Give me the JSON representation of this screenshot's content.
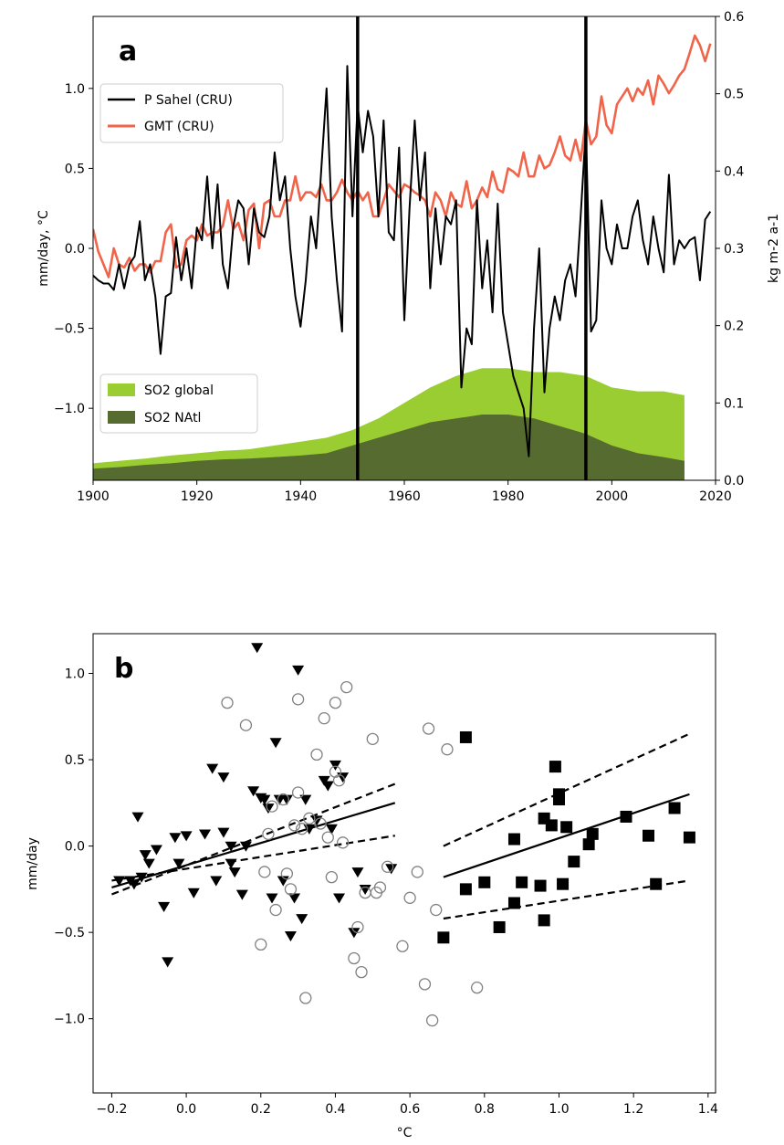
{
  "chart_data": [
    {
      "type": "line",
      "panel_label": "a",
      "xlim": [
        1900,
        2020
      ],
      "xticks": [
        1900,
        1920,
        1940,
        1960,
        1980,
        2000,
        2020
      ],
      "ylabel": "mm/day, °C",
      "ylim": [
        -1.45,
        1.45
      ],
      "yticks": [
        -1.0,
        -0.5,
        0.0,
        0.5,
        1.0
      ],
      "ylabel_right": "kg m-2 a-1",
      "ylim_right": [
        0.0,
        0.6
      ],
      "yticks_right": [
        0.0,
        0.1,
        0.2,
        0.3,
        0.4,
        0.5,
        0.6
      ],
      "vlines": [
        1951,
        1995
      ],
      "legend_upper": [
        "P Sahel (CRU)",
        "GMT (CRU)"
      ],
      "legend_lower": [
        "SO2 global",
        "SO2 NAtl"
      ],
      "colors": {
        "p_sahel": "#000000",
        "gmt": "#f0644a",
        "so2_global": "#9acd32",
        "so2_natl": "#556b2f"
      },
      "series": [
        {
          "name": "P Sahel (CRU)",
          "axis": "left",
          "x": [
            1900,
            1901,
            1902,
            1903,
            1904,
            1905,
            1906,
            1907,
            1908,
            1909,
            1910,
            1911,
            1912,
            1913,
            1914,
            1915,
            1916,
            1917,
            1918,
            1919,
            1920,
            1921,
            1922,
            1923,
            1924,
            1925,
            1926,
            1927,
            1928,
            1929,
            1930,
            1931,
            1932,
            1933,
            1934,
            1935,
            1936,
            1937,
            1938,
            1939,
            1940,
            1941,
            1942,
            1943,
            1944,
            1945,
            1946,
            1947,
            1948,
            1949,
            1950,
            1951,
            1952,
            1953,
            1954,
            1955,
            1956,
            1957,
            1958,
            1959,
            1960,
            1961,
            1962,
            1963,
            1964,
            1965,
            1966,
            1967,
            1968,
            1969,
            1970,
            1971,
            1972,
            1973,
            1974,
            1975,
            1976,
            1977,
            1978,
            1979,
            1980,
            1981,
            1982,
            1983,
            1984,
            1985,
            1986,
            1987,
            1988,
            1989,
            1990,
            1991,
            1992,
            1993,
            1994,
            1995,
            1996,
            1997,
            1998,
            1999,
            2000,
            2001,
            2002,
            2003,
            2004,
            2005,
            2006,
            2007,
            2008,
            2009,
            2010,
            2011,
            2012,
            2013,
            2014,
            2015,
            2016,
            2017,
            2018,
            2019
          ],
          "values": [
            -0.17,
            -0.2,
            -0.22,
            -0.22,
            -0.26,
            -0.1,
            -0.25,
            -0.1,
            -0.05,
            0.17,
            -0.2,
            -0.1,
            -0.3,
            -0.66,
            -0.3,
            -0.28,
            0.07,
            -0.2,
            0.0,
            -0.25,
            0.13,
            0.05,
            0.45,
            0.0,
            0.4,
            -0.1,
            -0.25,
            0.13,
            0.3,
            0.25,
            -0.1,
            0.25,
            0.1,
            0.07,
            0.2,
            0.6,
            0.3,
            0.45,
            0.0,
            -0.3,
            -0.49,
            -0.2,
            0.2,
            0.0,
            0.5,
            1.0,
            0.2,
            -0.2,
            -0.52,
            1.14,
            0.2,
            0.9,
            0.6,
            0.86,
            0.7,
            0.2,
            0.8,
            0.1,
            0.05,
            0.63,
            -0.45,
            0.25,
            0.8,
            0.3,
            0.6,
            -0.25,
            0.25,
            -0.1,
            0.2,
            0.15,
            0.3,
            -0.87,
            -0.5,
            -0.6,
            0.3,
            -0.25,
            0.05,
            -0.4,
            0.28,
            -0.4,
            -0.6,
            -0.8,
            -0.9,
            -1.0,
            -1.3,
            -0.5,
            0.0,
            -0.9,
            -0.5,
            -0.3,
            -0.45,
            -0.2,
            -0.1,
            -0.3,
            0.2,
            0.75,
            -0.52,
            -0.45,
            0.3,
            0.0,
            -0.1,
            0.15,
            0.0,
            0.0,
            0.2,
            0.3,
            0.05,
            -0.1,
            0.2,
            0.0,
            -0.15,
            0.46,
            -0.1,
            0.05,
            0.0,
            0.05,
            0.07,
            -0.2,
            0.18,
            0.23
          ]
        },
        {
          "name": "GMT (CRU)",
          "axis": "left",
          "x": [
            1900,
            1901,
            1902,
            1903,
            1904,
            1905,
            1906,
            1907,
            1908,
            1909,
            1910,
            1911,
            1912,
            1913,
            1914,
            1915,
            1916,
            1917,
            1918,
            1919,
            1920,
            1921,
            1922,
            1923,
            1924,
            1925,
            1926,
            1927,
            1928,
            1929,
            1930,
            1931,
            1932,
            1933,
            1934,
            1935,
            1936,
            1937,
            1938,
            1939,
            1940,
            1941,
            1942,
            1943,
            1944,
            1945,
            1946,
            1947,
            1948,
            1949,
            1950,
            1951,
            1952,
            1953,
            1954,
            1955,
            1956,
            1957,
            1958,
            1959,
            1960,
            1961,
            1962,
            1963,
            1964,
            1965,
            1966,
            1967,
            1968,
            1969,
            1970,
            1971,
            1972,
            1973,
            1974,
            1975,
            1976,
            1977,
            1978,
            1979,
            1980,
            1981,
            1982,
            1983,
            1984,
            1985,
            1986,
            1987,
            1988,
            1989,
            1990,
            1991,
            1992,
            1993,
            1994,
            1995,
            1996,
            1997,
            1998,
            1999,
            2000,
            2001,
            2002,
            2003,
            2004,
            2005,
            2006,
            2007,
            2008,
            2009,
            2010,
            2011,
            2012,
            2013,
            2014,
            2015,
            2016,
            2017,
            2018,
            2019
          ],
          "values": [
            0.12,
            -0.02,
            -0.1,
            -0.18,
            0.0,
            -0.1,
            -0.12,
            -0.06,
            -0.14,
            -0.1,
            -0.1,
            -0.15,
            -0.08,
            -0.08,
            0.1,
            0.15,
            -0.12,
            -0.1,
            0.05,
            0.08,
            0.05,
            0.15,
            0.08,
            0.1,
            0.1,
            0.14,
            0.3,
            0.12,
            0.16,
            0.05,
            0.24,
            0.28,
            0.0,
            0.28,
            0.3,
            0.2,
            0.2,
            0.3,
            0.3,
            0.45,
            0.3,
            0.35,
            0.35,
            0.32,
            0.4,
            0.3,
            0.3,
            0.35,
            0.43,
            0.35,
            0.3,
            0.36,
            0.3,
            0.35,
            0.2,
            0.2,
            0.3,
            0.4,
            0.36,
            0.32,
            0.4,
            0.38,
            0.35,
            0.33,
            0.3,
            0.2,
            0.35,
            0.3,
            0.2,
            0.35,
            0.28,
            0.26,
            0.42,
            0.25,
            0.3,
            0.38,
            0.32,
            0.48,
            0.37,
            0.35,
            0.5,
            0.48,
            0.45,
            0.6,
            0.45,
            0.45,
            0.58,
            0.5,
            0.52,
            0.6,
            0.7,
            0.58,
            0.55,
            0.68,
            0.55,
            0.8,
            0.65,
            0.7,
            0.95,
            0.77,
            0.72,
            0.9,
            0.95,
            1.0,
            0.92,
            1.0,
            0.96,
            1.05,
            0.9,
            1.08,
            1.03,
            0.97,
            1.02,
            1.08,
            1.12,
            1.22,
            1.33,
            1.27,
            1.17,
            1.28
          ]
        },
        {
          "name": "SO2 global",
          "axis": "right",
          "x": [
            1900,
            1905,
            1910,
            1915,
            1920,
            1925,
            1930,
            1935,
            1940,
            1945,
            1950,
            1955,
            1960,
            1965,
            1970,
            1975,
            1980,
            1985,
            1990,
            1995,
            2000,
            2005,
            2010,
            2014
          ],
          "values": [
            0.022,
            0.025,
            0.028,
            0.032,
            0.035,
            0.038,
            0.04,
            0.045,
            0.05,
            0.055,
            0.065,
            0.08,
            0.1,
            0.12,
            0.135,
            0.145,
            0.145,
            0.14,
            0.14,
            0.135,
            0.12,
            0.115,
            0.115,
            0.11
          ]
        },
        {
          "name": "SO2 NAtl",
          "axis": "right",
          "x": [
            1900,
            1905,
            1910,
            1915,
            1920,
            1925,
            1930,
            1935,
            1940,
            1945,
            1950,
            1955,
            1960,
            1965,
            1970,
            1975,
            1980,
            1985,
            1990,
            1995,
            2000,
            2005,
            2010,
            2014
          ],
          "values": [
            0.015,
            0.017,
            0.02,
            0.022,
            0.025,
            0.027,
            0.028,
            0.03,
            0.032,
            0.035,
            0.045,
            0.055,
            0.065,
            0.075,
            0.08,
            0.085,
            0.085,
            0.08,
            0.07,
            0.06,
            0.045,
            0.035,
            0.03,
            0.025
          ]
        }
      ]
    },
    {
      "type": "scatter",
      "panel_label": "b",
      "xlabel": "°C",
      "ylabel": "mm/day",
      "xlim": [
        -0.25,
        1.42
      ],
      "ylim": [
        -1.43,
        1.23
      ],
      "xticks": [
        -0.2,
        0.0,
        0.2,
        0.4,
        0.6,
        0.8,
        1.0,
        1.2,
        1.4
      ],
      "yticks": [
        -1.0,
        -0.5,
        0.0,
        0.5,
        1.0
      ],
      "series": [
        {
          "marker": "triangle-down",
          "x": [
            -0.18,
            -0.15,
            -0.14,
            -0.13,
            -0.12,
            -0.11,
            -0.1,
            -0.08,
            -0.06,
            -0.05,
            -0.03,
            -0.02,
            0.0,
            0.02,
            0.05,
            0.07,
            0.08,
            0.1,
            0.1,
            0.12,
            0.12,
            0.13,
            0.15,
            0.16,
            0.18,
            0.19,
            0.2,
            0.21,
            0.22,
            0.23,
            0.24,
            0.25,
            0.26,
            0.27,
            0.28,
            0.29,
            0.3,
            0.31,
            0.32,
            0.33,
            0.35,
            0.37,
            0.38,
            0.39,
            0.4,
            0.41,
            0.42,
            0.45,
            0.46,
            0.48,
            0.55
          ],
          "y": [
            -0.2,
            -0.2,
            -0.22,
            0.17,
            -0.18,
            -0.05,
            -0.1,
            -0.02,
            -0.35,
            -0.67,
            0.05,
            -0.1,
            0.06,
            -0.27,
            0.07,
            0.45,
            -0.2,
            0.08,
            0.4,
            -0.1,
            0.0,
            -0.15,
            -0.28,
            0.0,
            0.32,
            1.15,
            0.28,
            0.27,
            0.22,
            -0.3,
            0.6,
            0.27,
            -0.2,
            0.27,
            -0.52,
            -0.3,
            1.02,
            -0.42,
            0.27,
            0.1,
            0.15,
            0.38,
            0.35,
            0.1,
            0.47,
            -0.3,
            0.4,
            -0.5,
            -0.15,
            -0.25,
            -0.13
          ]
        },
        {
          "marker": "circle-open",
          "x": [
            0.11,
            0.16,
            0.2,
            0.21,
            0.22,
            0.23,
            0.24,
            0.26,
            0.27,
            0.28,
            0.29,
            0.3,
            0.3,
            0.31,
            0.32,
            0.33,
            0.35,
            0.36,
            0.37,
            0.38,
            0.39,
            0.4,
            0.4,
            0.41,
            0.42,
            0.43,
            0.45,
            0.46,
            0.47,
            0.48,
            0.5,
            0.51,
            0.52,
            0.54,
            0.58,
            0.6,
            0.62,
            0.64,
            0.65,
            0.66,
            0.67,
            0.7,
            0.78
          ],
          "y": [
            0.83,
            0.7,
            -0.57,
            -0.15,
            0.07,
            0.23,
            -0.37,
            0.27,
            -0.16,
            -0.25,
            0.12,
            0.85,
            0.31,
            0.1,
            -0.88,
            0.16,
            0.53,
            0.13,
            0.74,
            0.05,
            -0.18,
            0.83,
            0.43,
            0.38,
            0.02,
            0.92,
            -0.65,
            -0.47,
            -0.73,
            -0.27,
            0.62,
            -0.27,
            -0.24,
            -0.12,
            -0.58,
            -0.3,
            -0.15,
            -0.8,
            0.68,
            -1.01,
            -0.37,
            0.56,
            -0.82
          ]
        },
        {
          "marker": "square",
          "x": [
            0.69,
            0.75,
            0.75,
            0.8,
            0.84,
            0.88,
            0.88,
            0.9,
            0.95,
            0.96,
            0.96,
            0.98,
            0.99,
            1.0,
            1.0,
            1.01,
            1.02,
            1.04,
            1.08,
            1.09,
            1.18,
            1.24,
            1.26,
            1.31,
            1.35
          ],
          "y": [
            -0.53,
            0.63,
            -0.25,
            -0.21,
            -0.47,
            0.04,
            -0.33,
            -0.21,
            -0.23,
            0.16,
            -0.43,
            0.12,
            0.46,
            0.27,
            0.3,
            -0.22,
            0.11,
            -0.09,
            0.01,
            0.07,
            0.17,
            0.06,
            -0.22,
            0.22,
            0.05
          ]
        }
      ],
      "fit_lines": [
        {
          "style": "solid",
          "x": [
            -0.2,
            0.56
          ],
          "y": [
            -0.24,
            0.25
          ]
        },
        {
          "style": "dashed",
          "x": [
            -0.2,
            0.56
          ],
          "y": [
            -0.28,
            0.36
          ]
        },
        {
          "style": "dashed",
          "x": [
            -0.2,
            0.56
          ],
          "y": [
            -0.2,
            0.06
          ]
        },
        {
          "style": "solid",
          "x": [
            0.69,
            1.35
          ],
          "y": [
            -0.18,
            0.3
          ]
        },
        {
          "style": "dashed",
          "x": [
            0.69,
            1.35
          ],
          "y": [
            0.0,
            0.65
          ]
        },
        {
          "style": "dashed",
          "x": [
            0.69,
            1.35
          ],
          "y": [
            -0.42,
            -0.2
          ]
        }
      ]
    }
  ]
}
